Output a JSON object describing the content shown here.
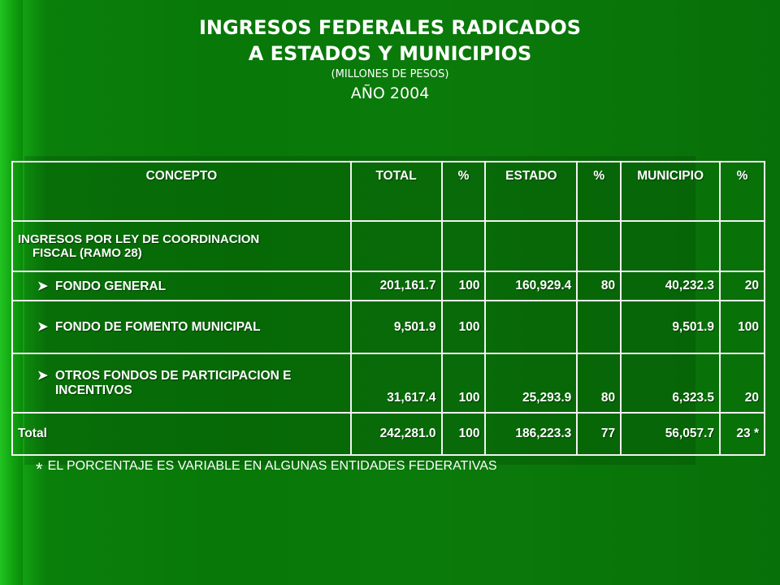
{
  "title": {
    "line1": "INGRESOS FEDERALES RADICADOS",
    "line2": "A ESTADOS Y MUNICIPIOS",
    "subtitle": "(MILLONES DE PESOS)",
    "year": "AÑO 2004"
  },
  "table": {
    "headers": [
      "CONCEPTO",
      "TOTAL",
      "%",
      "ESTADO",
      "%",
      "MUNICIPIO",
      "%"
    ],
    "section_label_1": "INGRESOS POR LEY DE COORDINACION",
    "section_label_2": "FISCAL (RAMO 28)",
    "rows": [
      {
        "concepto": "FONDO GENERAL",
        "total": "201,161.7",
        "pct1": "100",
        "estado": "160,929.4",
        "pct2": "80",
        "municipio": "40,232.3",
        "pct3": "20"
      },
      {
        "concepto": "FONDO DE FOMENTO MUNICIPAL",
        "total": "9,501.9",
        "pct1": "100",
        "estado": "",
        "pct2": "",
        "municipio": "9,501.9",
        "pct3": "100"
      },
      {
        "concepto_1": "OTROS FONDOS DE PARTICIPACION E",
        "concepto_2": "INCENTIVOS",
        "total": "31,617.4",
        "pct1": "100",
        "estado": "25,293.9",
        "pct2": "80",
        "municipio": "6,323.5",
        "pct3": "20"
      }
    ],
    "total_row": {
      "concepto": "Total",
      "total": "242,281.0",
      "pct1": "100",
      "estado": "186,223.3",
      "pct2": "77",
      "municipio": "56,057.7",
      "pct3": "23 *"
    }
  },
  "footnote": {
    "star": "*",
    "text": "EL PORCENTAJE ES VARIABLE EN ALGUNAS ENTIDADES FEDERATIVAS"
  },
  "colors": {
    "background": "#087808",
    "text": "#ffffff",
    "border": "#f2f2f2"
  },
  "icons": {
    "bullet": "arrow-right-icon"
  }
}
